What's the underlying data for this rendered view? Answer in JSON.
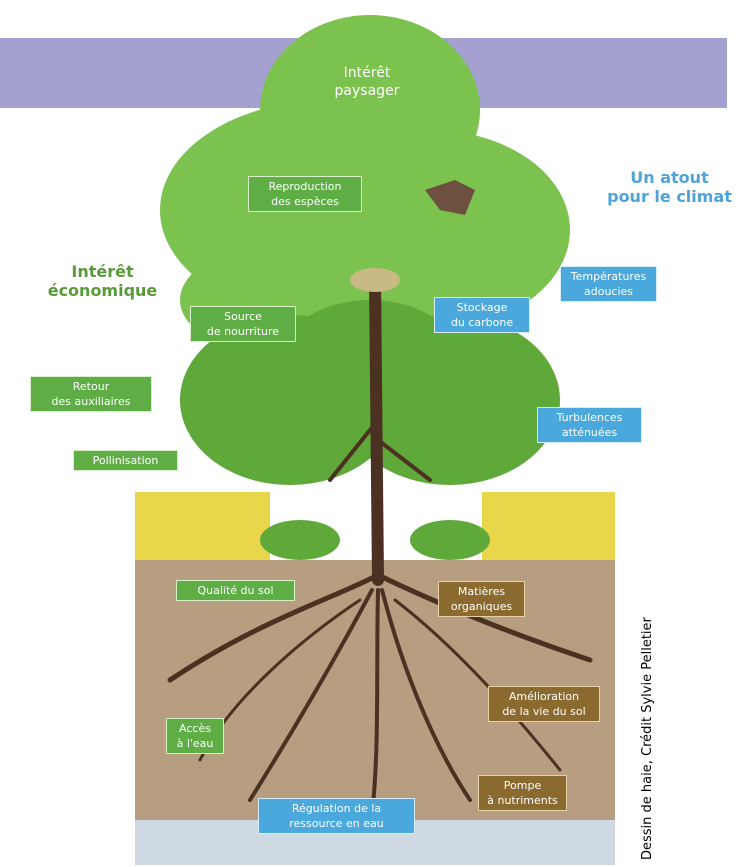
{
  "title": [
    "Intérêt",
    "paysager"
  ],
  "sections": {
    "economic": [
      "Intérêt",
      "économique"
    ],
    "climate": [
      "Un atout",
      "pour le climat"
    ]
  },
  "labels": [
    {
      "kind": "green",
      "lines": [
        "Reproduction",
        "des espèces"
      ]
    },
    {
      "kind": "blue",
      "lines": [
        "Températures",
        "adoucies"
      ]
    },
    {
      "kind": "blue",
      "lines": [
        "Stockage",
        "du carbone"
      ]
    },
    {
      "kind": "green",
      "lines": [
        "Source",
        "de nourriture"
      ]
    },
    {
      "kind": "green",
      "lines": [
        "Retour",
        "des auxiliaires"
      ]
    },
    {
      "kind": "green",
      "lines": [
        "Pollinisation"
      ]
    },
    {
      "kind": "blue",
      "lines": [
        "Turbulences",
        "atténuées"
      ]
    },
    {
      "kind": "green",
      "lines": [
        "Qualité du sol"
      ]
    },
    {
      "kind": "brown",
      "lines": [
        "Matières",
        "organiques"
      ]
    },
    {
      "kind": "brown",
      "lines": [
        "Amélioration",
        "de la vie du sol"
      ]
    },
    {
      "kind": "green",
      "lines": [
        "Accès",
        "à l'eau"
      ]
    },
    {
      "kind": "brown",
      "lines": [
        "Pompe",
        "à nutriments"
      ]
    },
    {
      "kind": "blue",
      "lines": [
        "Régulation de la",
        "ressource en eau"
      ]
    }
  ],
  "credit": "Dessin de haie, Crédit Sylvie Pelletier"
}
